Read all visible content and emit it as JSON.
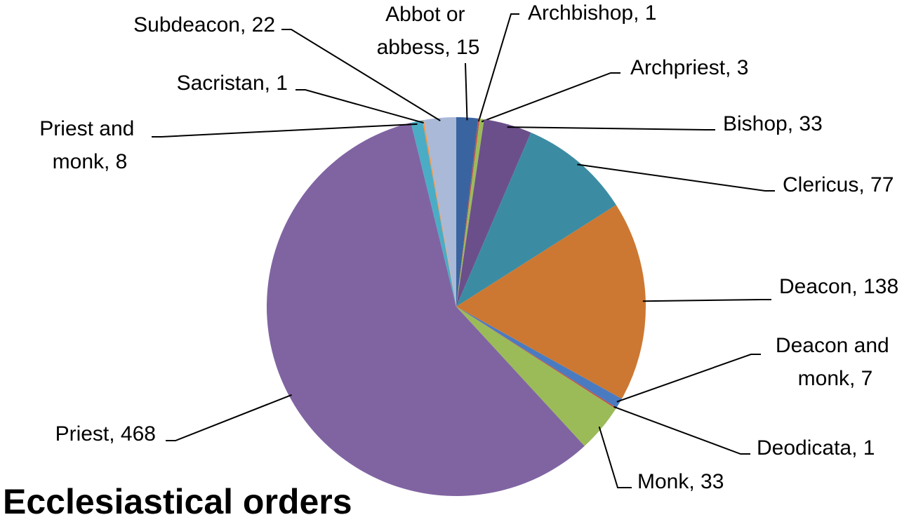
{
  "chart_data": {
    "type": "pie",
    "title": "Ecclesiastical orders",
    "values": [
      15,
      1,
      3,
      33,
      77,
      138,
      7,
      1,
      33,
      468,
      8,
      1,
      22
    ],
    "value_labels": [
      "Abbot or abbess, 15",
      "Archbishop, 1",
      "Archpriest, 3",
      "Bishop, 33",
      "Clericus, 77",
      "Deacon, 138",
      "Deacon and monk, 7",
      "Deodicata, 1",
      "Monk, 33",
      "Priest, 468",
      "Priest and monk, 8",
      "Sacristan, 1",
      "Subdeacon, 22"
    ],
    "colors": [
      "#3a64a0",
      "#c0504d",
      "#9bbb59",
      "#6b4f8a",
      "#3b8ca3",
      "#cc7832",
      "#4a7bc0",
      "#c0504d",
      "#9bbb59",
      "#8064a2",
      "#4bacc6",
      "#f79646",
      "#aab9d8"
    ]
  }
}
